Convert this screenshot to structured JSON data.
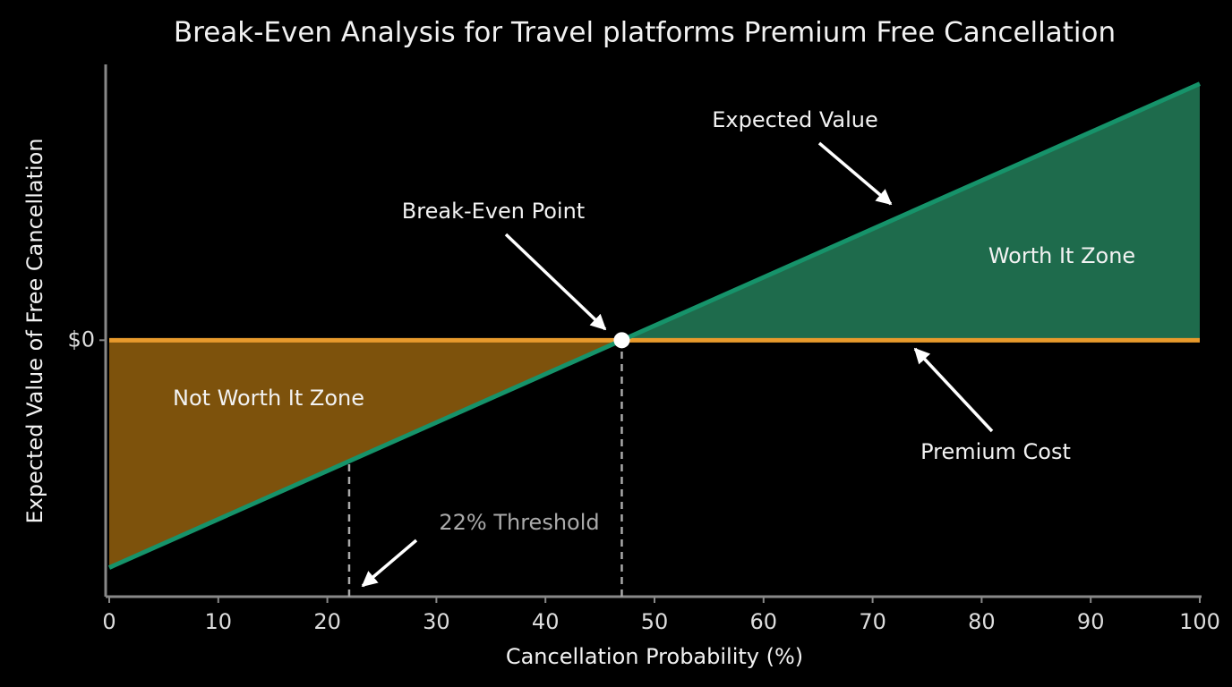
{
  "chart_data": {
    "type": "line",
    "title": "Break-Even Analysis for Travel platforms Premium Free Cancellation",
    "x_label": "Cancellation Probability (%)",
    "y_label": "Expected Value of Free Cancellation",
    "x": [
      0,
      47,
      100
    ],
    "series": [
      {
        "name": "Expected Value",
        "color": "#16936a",
        "fill_color": "#1e6b4c",
        "values": [
          -47,
          0,
          53
        ]
      },
      {
        "name": "Premium Cost",
        "color": "#e89a2c",
        "fill_color": "#7d520c",
        "values": [
          0,
          0,
          0
        ]
      }
    ],
    "xlim": [
      0,
      100
    ],
    "xticks": [
      0,
      10,
      20,
      30,
      40,
      50,
      60,
      70,
      80,
      90,
      100
    ],
    "ylim": [
      -53,
      57
    ],
    "yticks": [
      {
        "value": 0,
        "label": "$0"
      }
    ],
    "break_even": {
      "x": 47,
      "y": 0,
      "label": "Break-Even Point"
    },
    "threshold": {
      "x": 22,
      "label": "22% Threshold"
    },
    "zones": {
      "worth": "Worth It Zone",
      "not_worth": "Not Worth It Zone"
    }
  }
}
